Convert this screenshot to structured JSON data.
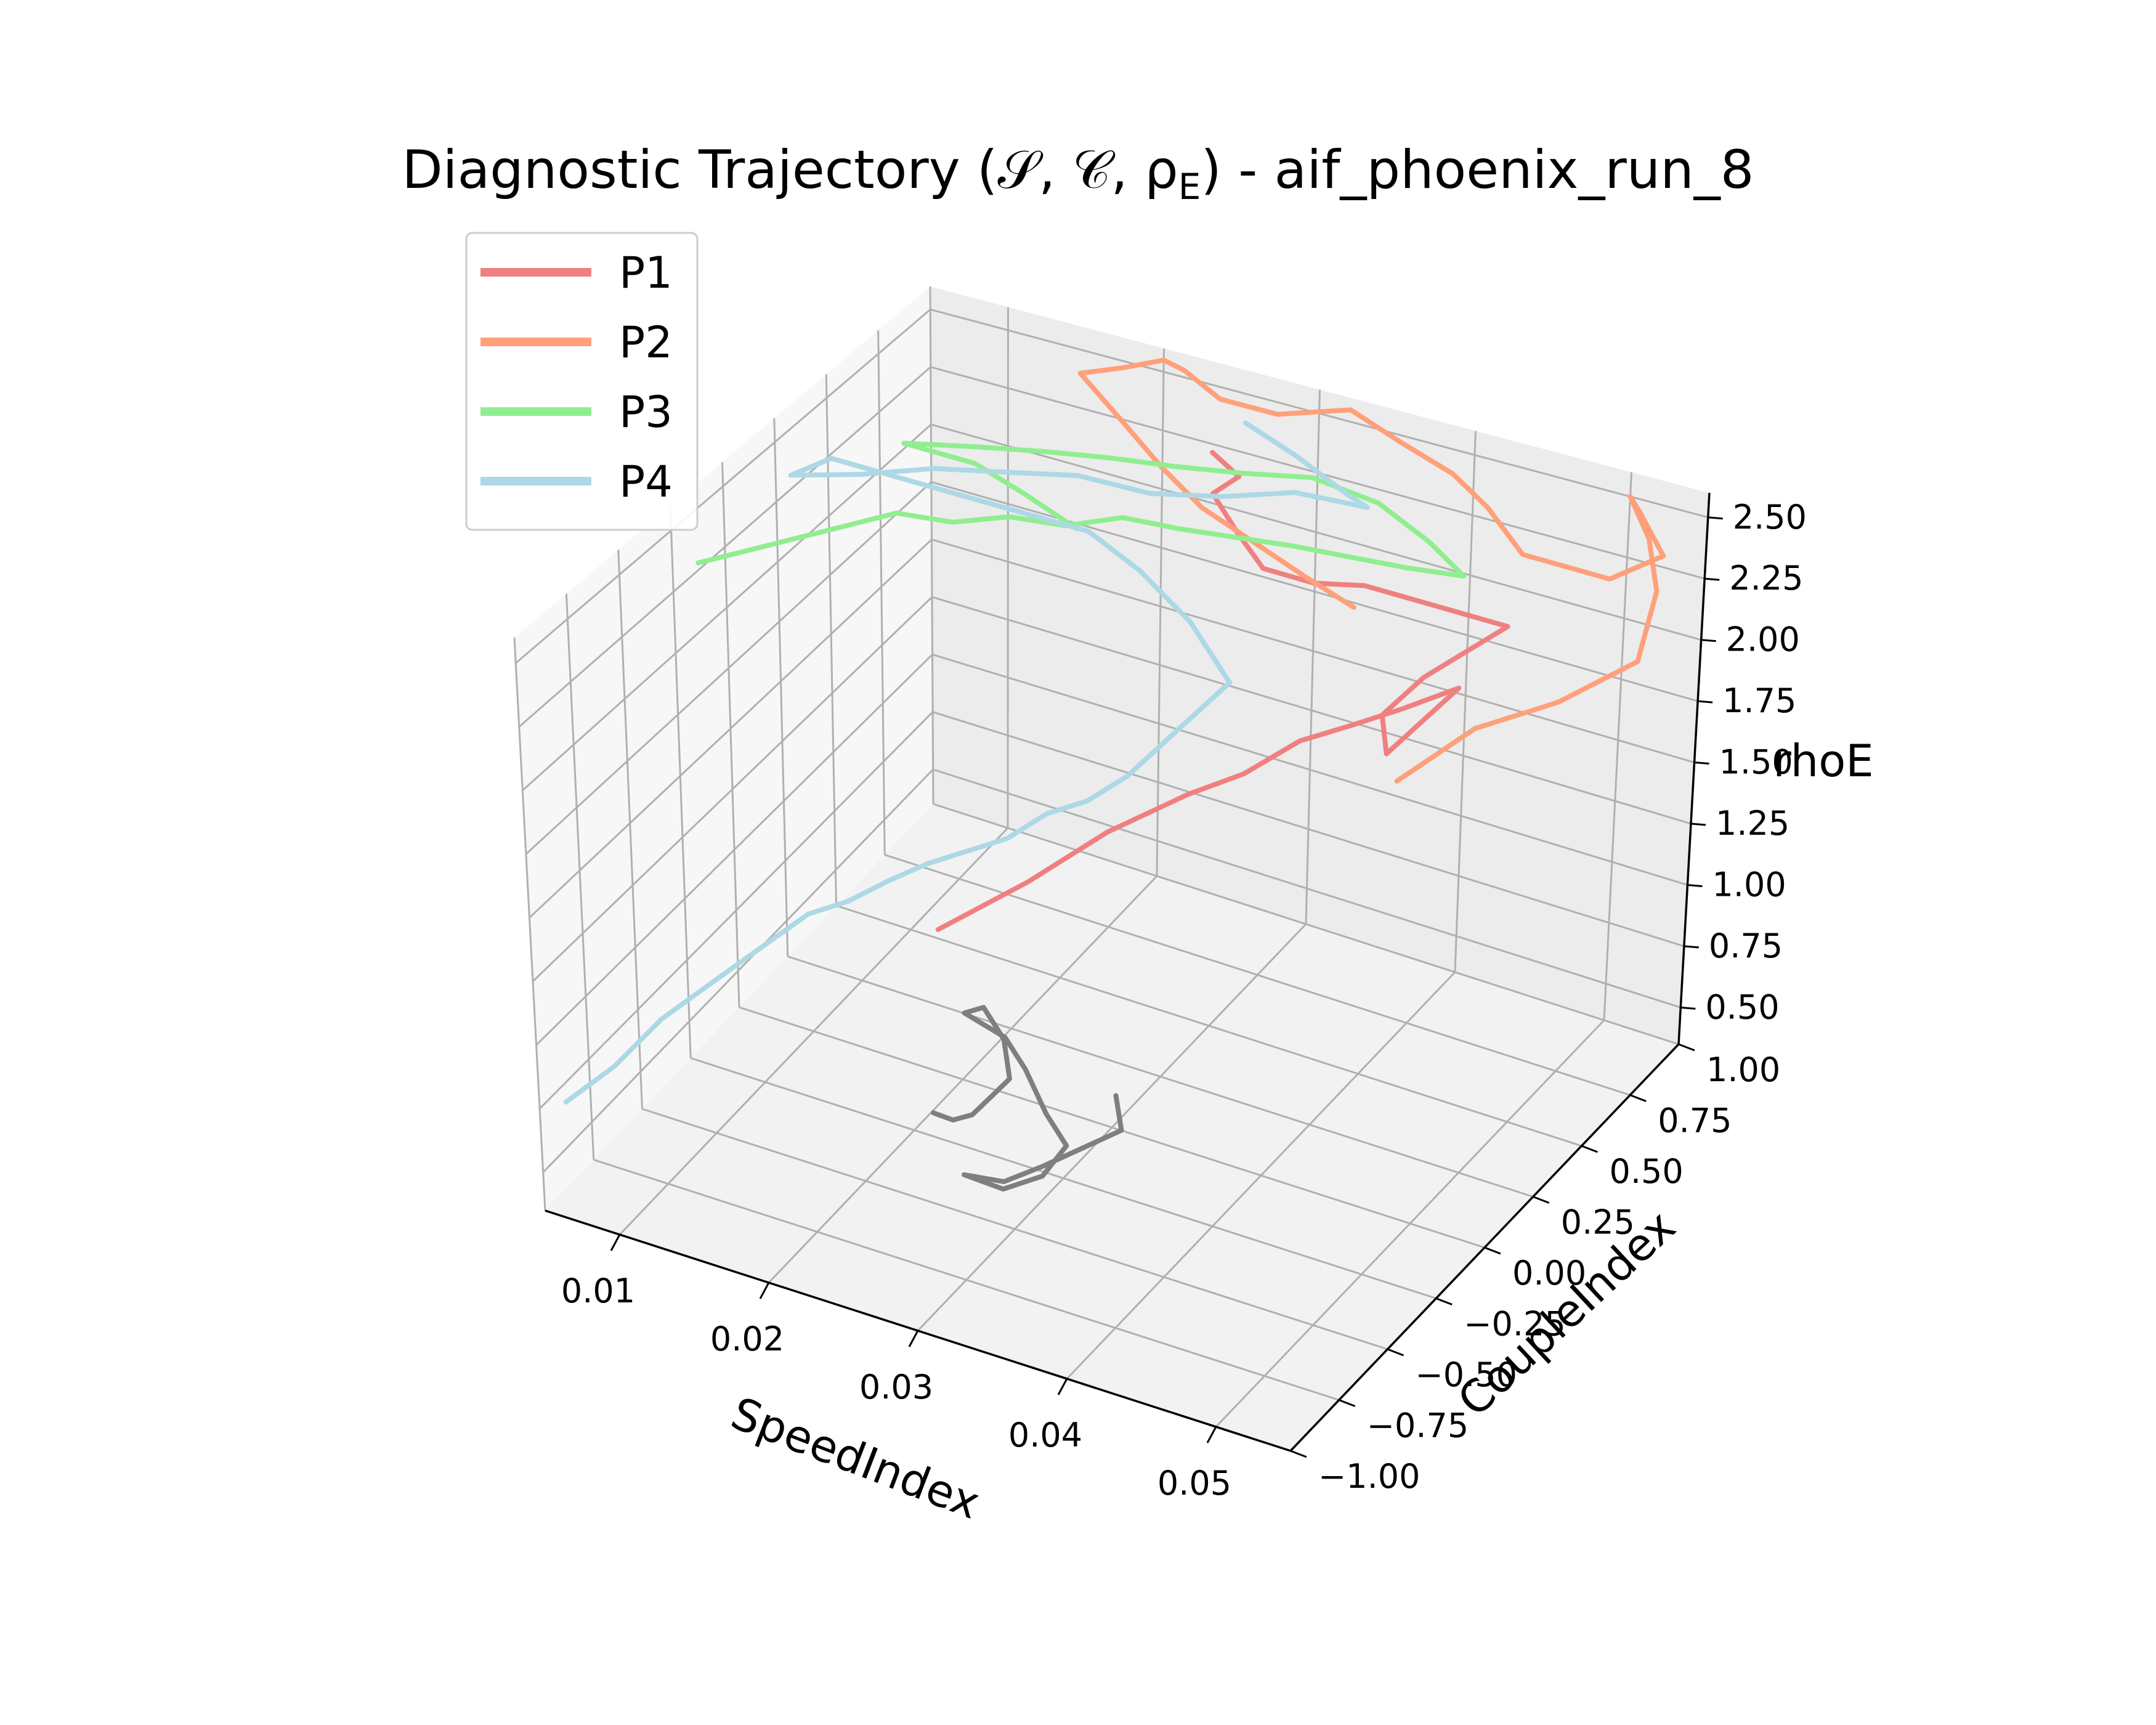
{
  "chart_data": {
    "type": "line",
    "projection": "3d",
    "title": "Diagnostic Trajectory (𝒮, 𝒞, ρ",
    "title_sub": "E",
    "title_tail": ") - aif_phoenix_run_8",
    "xlabel": "SpeedIndex",
    "ylabel": "CoupleIndex",
    "zlabel": "rhoE",
    "xlim": [
      0.005,
      0.055
    ],
    "ylim": [
      -1.0,
      1.0
    ],
    "zlim": [
      0.35,
      2.6
    ],
    "x_ticks": [
      "0.01",
      "0.02",
      "0.03",
      "0.04",
      "0.05"
    ],
    "y_ticks": [
      "−1.00",
      "−0.75",
      "−0.50",
      "−0.25",
      "0.00",
      "0.25",
      "0.50",
      "0.75",
      "1.00"
    ],
    "z_ticks": [
      "0.50",
      "0.75",
      "1.00",
      "1.25",
      "1.50",
      "1.75",
      "2.00",
      "2.25",
      "2.50"
    ],
    "grid": true,
    "legend_position": "upper-left",
    "series": [
      {
        "name": "P1",
        "color": "#f08080",
        "x": [
          0.022,
          0.026,
          0.03,
          0.034,
          0.037,
          0.04,
          0.043,
          0.046,
          0.049,
          0.047,
          0.045,
          0.044,
          0.046,
          0.048,
          0.05,
          0.04,
          0.036,
          0.032,
          0.03,
          0.028,
          0.029,
          0.027
        ],
        "y": [
          -0.25,
          -0.1,
          0.0,
          0.1,
          0.15,
          0.2,
          0.22,
          0.25,
          0.3,
          0.28,
          0.25,
          0.3,
          0.35,
          0.4,
          0.45,
          0.5,
          0.55,
          0.6,
          0.62,
          0.65,
          0.7,
          0.72
        ],
        "z": [
          1.2,
          1.35,
          1.55,
          1.7,
          1.8,
          1.95,
          2.05,
          2.15,
          2.25,
          2.1,
          1.95,
          2.05,
          2.2,
          2.3,
          2.4,
          2.35,
          2.25,
          2.2,
          2.3,
          2.4,
          2.45,
          2.5
        ]
      },
      {
        "name": "P2",
        "color": "#ffa07a",
        "x": [
          0.045,
          0.048,
          0.052,
          0.055,
          0.054,
          0.052,
          0.05,
          0.052,
          0.055,
          0.053,
          0.05,
          0.046,
          0.043,
          0.04,
          0.036,
          0.032,
          0.028,
          0.025,
          0.022,
          0.02,
          0.018,
          0.016,
          0.02,
          0.024,
          0.028,
          0.032,
          0.036,
          0.04
        ],
        "y": [
          0.3,
          0.45,
          0.55,
          0.7,
          0.85,
          0.95,
          1.0,
          0.9,
          0.8,
          0.7,
          0.75,
          0.8,
          0.85,
          0.9,
          0.95,
          1.0,
          0.95,
          0.9,
          0.95,
          1.0,
          0.95,
          0.9,
          0.8,
          0.7,
          0.6,
          0.55,
          0.5,
          0.45
        ],
        "z": [
          1.8,
          1.95,
          2.05,
          2.15,
          2.3,
          2.4,
          2.5,
          2.55,
          2.5,
          2.45,
          2.4,
          2.35,
          2.45,
          2.5,
          2.52,
          2.55,
          2.5,
          2.55,
          2.58,
          2.55,
          2.52,
          2.5,
          2.45,
          2.4,
          2.38,
          2.35,
          2.32,
          2.3
        ]
      },
      {
        "name": "P3",
        "color": "#90ee90",
        "x": [
          0.006,
          0.009,
          0.012,
          0.015,
          0.018,
          0.021,
          0.024,
          0.027,
          0.03,
          0.033,
          0.036,
          0.039,
          0.042,
          0.045,
          0.042,
          0.038,
          0.034,
          0.03,
          0.026,
          0.022,
          0.018,
          0.014,
          0.01,
          0.012,
          0.016,
          0.02,
          0.024
        ],
        "y": [
          -0.2,
          -0.1,
          0.0,
          0.1,
          0.15,
          0.2,
          0.25,
          0.3,
          0.35,
          0.4,
          0.45,
          0.5,
          0.55,
          0.6,
          0.65,
          0.7,
          0.68,
          0.65,
          0.62,
          0.6,
          0.58,
          0.55,
          0.5,
          0.45,
          0.4,
          0.35,
          0.3
        ],
        "z": [
          2.35,
          2.4,
          2.45,
          2.5,
          2.48,
          2.52,
          2.5,
          2.55,
          2.52,
          2.5,
          2.48,
          2.45,
          2.42,
          2.4,
          2.45,
          2.5,
          2.55,
          2.52,
          2.5,
          2.48,
          2.45,
          2.42,
          2.4,
          2.45,
          2.5,
          2.48,
          2.45
        ]
      },
      {
        "name": "P4",
        "color": "#add8e6",
        "x": [
          0.004,
          0.006,
          0.008,
          0.01,
          0.012,
          0.014,
          0.016,
          0.018,
          0.02,
          0.022,
          0.024,
          0.026,
          0.028,
          0.03,
          0.032,
          0.034,
          0.03,
          0.026,
          0.022,
          0.018,
          0.014,
          0.01,
          0.008,
          0.006,
          0.01,
          0.014,
          0.018,
          0.022,
          0.026,
          0.03,
          0.034,
          0.038,
          0.036,
          0.032,
          0.028
        ],
        "y": [
          -0.8,
          -0.7,
          -0.6,
          -0.5,
          -0.4,
          -0.3,
          -0.25,
          -0.2,
          -0.15,
          -0.1,
          -0.05,
          0.0,
          0.05,
          0.1,
          0.2,
          0.3,
          0.4,
          0.45,
          0.5,
          0.45,
          0.4,
          0.35,
          0.3,
          0.25,
          0.3,
          0.35,
          0.4,
          0.45,
          0.5,
          0.55,
          0.6,
          0.65,
          0.7,
          0.75,
          0.8
        ],
        "z": [
          0.6,
          0.7,
          0.85,
          0.95,
          1.05,
          1.15,
          1.2,
          1.28,
          1.35,
          1.4,
          1.45,
          1.55,
          1.6,
          1.7,
          1.85,
          2.0,
          2.1,
          2.2,
          2.25,
          2.3,
          2.35,
          2.4,
          2.45,
          2.38,
          2.42,
          2.48,
          2.5,
          2.52,
          2.48,
          2.5,
          2.55,
          2.52,
          2.5,
          2.55,
          2.58
        ]
      },
      {
        "name": "",
        "color": "#7f7f7f",
        "x": [
          0.022,
          0.024,
          0.026,
          0.028,
          0.03,
          0.029,
          0.027,
          0.025,
          0.027,
          0.029,
          0.031,
          0.033,
          0.032,
          0.03,
          0.028,
          0.026,
          0.028,
          0.03,
          0.032,
          0.034,
          0.033
        ],
        "y": [
          -0.3,
          -0.35,
          -0.4,
          -0.45,
          -0.5,
          -0.45,
          -0.4,
          -0.35,
          -0.3,
          -0.35,
          -0.4,
          -0.45,
          -0.5,
          -0.55,
          -0.5,
          -0.45,
          -0.4,
          -0.35,
          -0.3,
          -0.25,
          -0.2
        ],
        "z": [
          0.5,
          0.55,
          0.65,
          0.8,
          0.95,
          1.05,
          1.1,
          1.0,
          0.9,
          0.85,
          0.75,
          0.7,
          0.6,
          0.55,
          0.5,
          0.45,
          0.42,
          0.48,
          0.55,
          0.62,
          0.7
        ]
      }
    ]
  }
}
